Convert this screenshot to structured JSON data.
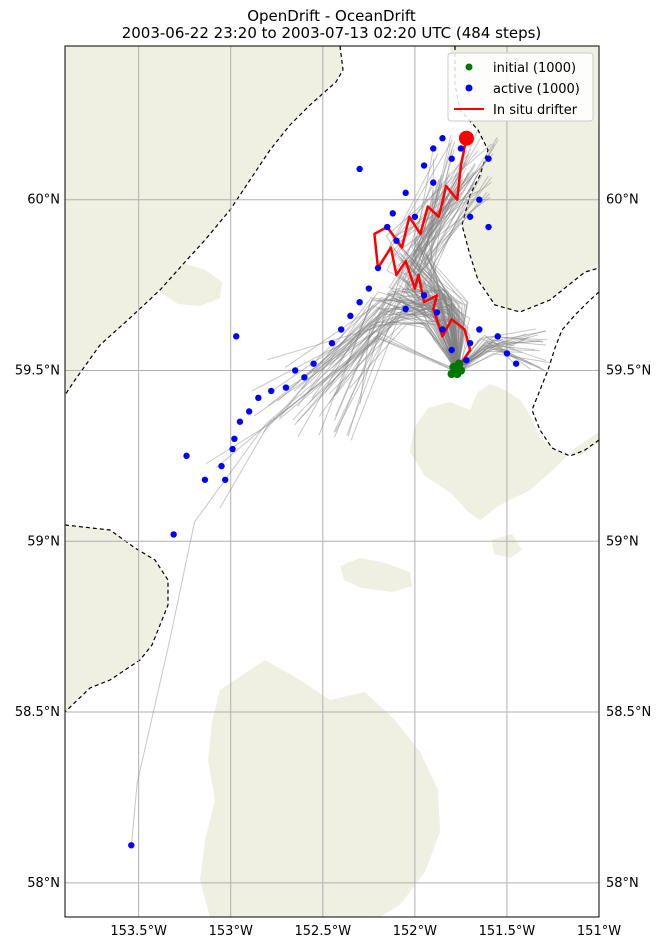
{
  "title": {
    "line1": "OpenDrift - OceanDrift",
    "line2": "2003-06-22 23:20 to 2003-07-13 02:20 UTC (484 steps)"
  },
  "legend": {
    "initial": "initial (1000)",
    "active": "active (1000)",
    "drifter": "In situ drifter"
  },
  "colors": {
    "land": "#efefe2",
    "ocean": "#ffffff",
    "initial": "#007800",
    "active": "#0000ff",
    "drifter": "#ff0000",
    "trajectory": "#808080",
    "grid": "#b0b0b0"
  },
  "chart_data": {
    "type": "map",
    "xlim": [
      -153.9,
      -151.0
    ],
    "ylim": [
      57.9,
      60.45
    ],
    "x_ticks": [
      {
        "value": -153.5,
        "label": "153.5°W"
      },
      {
        "value": -153.0,
        "label": "153°W"
      },
      {
        "value": -152.5,
        "label": "152.5°W"
      },
      {
        "value": -152.0,
        "label": "152°W"
      },
      {
        "value": -151.5,
        "label": "151.5°W"
      },
      {
        "value": -151.0,
        "label": "151°W"
      }
    ],
    "y_ticks": [
      {
        "value": 60.0,
        "label": "60°N"
      },
      {
        "value": 59.5,
        "label": "59.5°N"
      },
      {
        "value": 59.0,
        "label": "59°N"
      },
      {
        "value": 58.5,
        "label": "58.5°N"
      },
      {
        "value": 58.0,
        "label": "58°N"
      }
    ],
    "grid": true,
    "legend_position": "top-right",
    "initial_positions_lonlat": [
      [
        -151.78,
        59.5
      ],
      [
        -151.8,
        59.49
      ],
      [
        -151.77,
        59.49
      ],
      [
        -151.75,
        59.5
      ],
      [
        -151.79,
        59.51
      ],
      [
        -151.76,
        59.52
      ]
    ],
    "drifter_track_lonlat": [
      [
        -151.75,
        59.52
      ],
      [
        -151.7,
        59.56
      ],
      [
        -151.73,
        59.62
      ],
      [
        -151.8,
        59.65
      ],
      [
        -151.85,
        59.6
      ],
      [
        -151.9,
        59.68
      ],
      [
        -151.88,
        59.72
      ],
      [
        -151.95,
        59.7
      ],
      [
        -151.98,
        59.78
      ],
      [
        -152.0,
        59.74
      ],
      [
        -152.05,
        59.82
      ],
      [
        -152.1,
        59.78
      ],
      [
        -152.13,
        59.86
      ],
      [
        -152.2,
        59.8
      ],
      [
        -152.22,
        59.9
      ],
      [
        -152.15,
        59.92
      ],
      [
        -152.07,
        59.86
      ],
      [
        -152.03,
        59.95
      ],
      [
        -151.97,
        59.9
      ],
      [
        -151.93,
        59.98
      ],
      [
        -151.87,
        59.95
      ],
      [
        -151.83,
        60.04
      ],
      [
        -151.77,
        60.0
      ],
      [
        -151.75,
        60.1
      ],
      [
        -151.72,
        60.18
      ]
    ],
    "drifter_final_lonlat": [
      -151.72,
      60.18
    ],
    "active_particles_lonlat": [
      [
        -153.54,
        58.11
      ],
      [
        -153.31,
        59.02
      ],
      [
        -153.14,
        59.18
      ],
      [
        -153.05,
        59.22
      ],
      [
        -153.03,
        59.18
      ],
      [
        -152.97,
        59.6
      ],
      [
        -152.3,
        60.09
      ],
      [
        -153.24,
        59.25
      ],
      [
        -152.95,
        59.35
      ],
      [
        -152.85,
        59.42
      ],
      [
        -152.7,
        59.45
      ],
      [
        -152.55,
        59.52
      ],
      [
        -152.45,
        59.58
      ],
      [
        -152.35,
        59.66
      ],
      [
        -152.25,
        59.74
      ],
      [
        -152.2,
        59.8
      ],
      [
        -152.1,
        59.88
      ],
      [
        -152.0,
        59.95
      ],
      [
        -151.9,
        60.05
      ],
      [
        -151.8,
        60.12
      ],
      [
        -151.75,
        60.15
      ],
      [
        -151.6,
        60.12
      ],
      [
        -151.55,
        59.6
      ],
      [
        -151.5,
        59.55
      ],
      [
        -151.65,
        59.62
      ],
      [
        -151.7,
        59.58
      ],
      [
        -151.85,
        59.62
      ],
      [
        -151.95,
        59.72
      ],
      [
        -152.05,
        59.68
      ],
      [
        -152.6,
        59.48
      ],
      [
        -152.78,
        59.44
      ],
      [
        -152.9,
        59.38
      ],
      [
        -152.98,
        59.3
      ],
      [
        -152.99,
        59.27
      ],
      [
        -152.65,
        59.5
      ],
      [
        -152.4,
        59.62
      ],
      [
        -152.3,
        59.7
      ],
      [
        -151.65,
        60.0
      ],
      [
        -151.7,
        59.95
      ],
      [
        -151.6,
        59.92
      ],
      [
        -151.45,
        59.52
      ],
      [
        -151.72,
        59.53
      ],
      [
        -151.8,
        59.56
      ],
      [
        -151.88,
        59.67
      ],
      [
        -152.15,
        59.92
      ],
      [
        -151.85,
        60.18
      ],
      [
        -151.9,
        60.15
      ],
      [
        -151.95,
        60.1
      ],
      [
        -152.05,
        60.02
      ],
      [
        -152.12,
        59.96
      ]
    ]
  }
}
